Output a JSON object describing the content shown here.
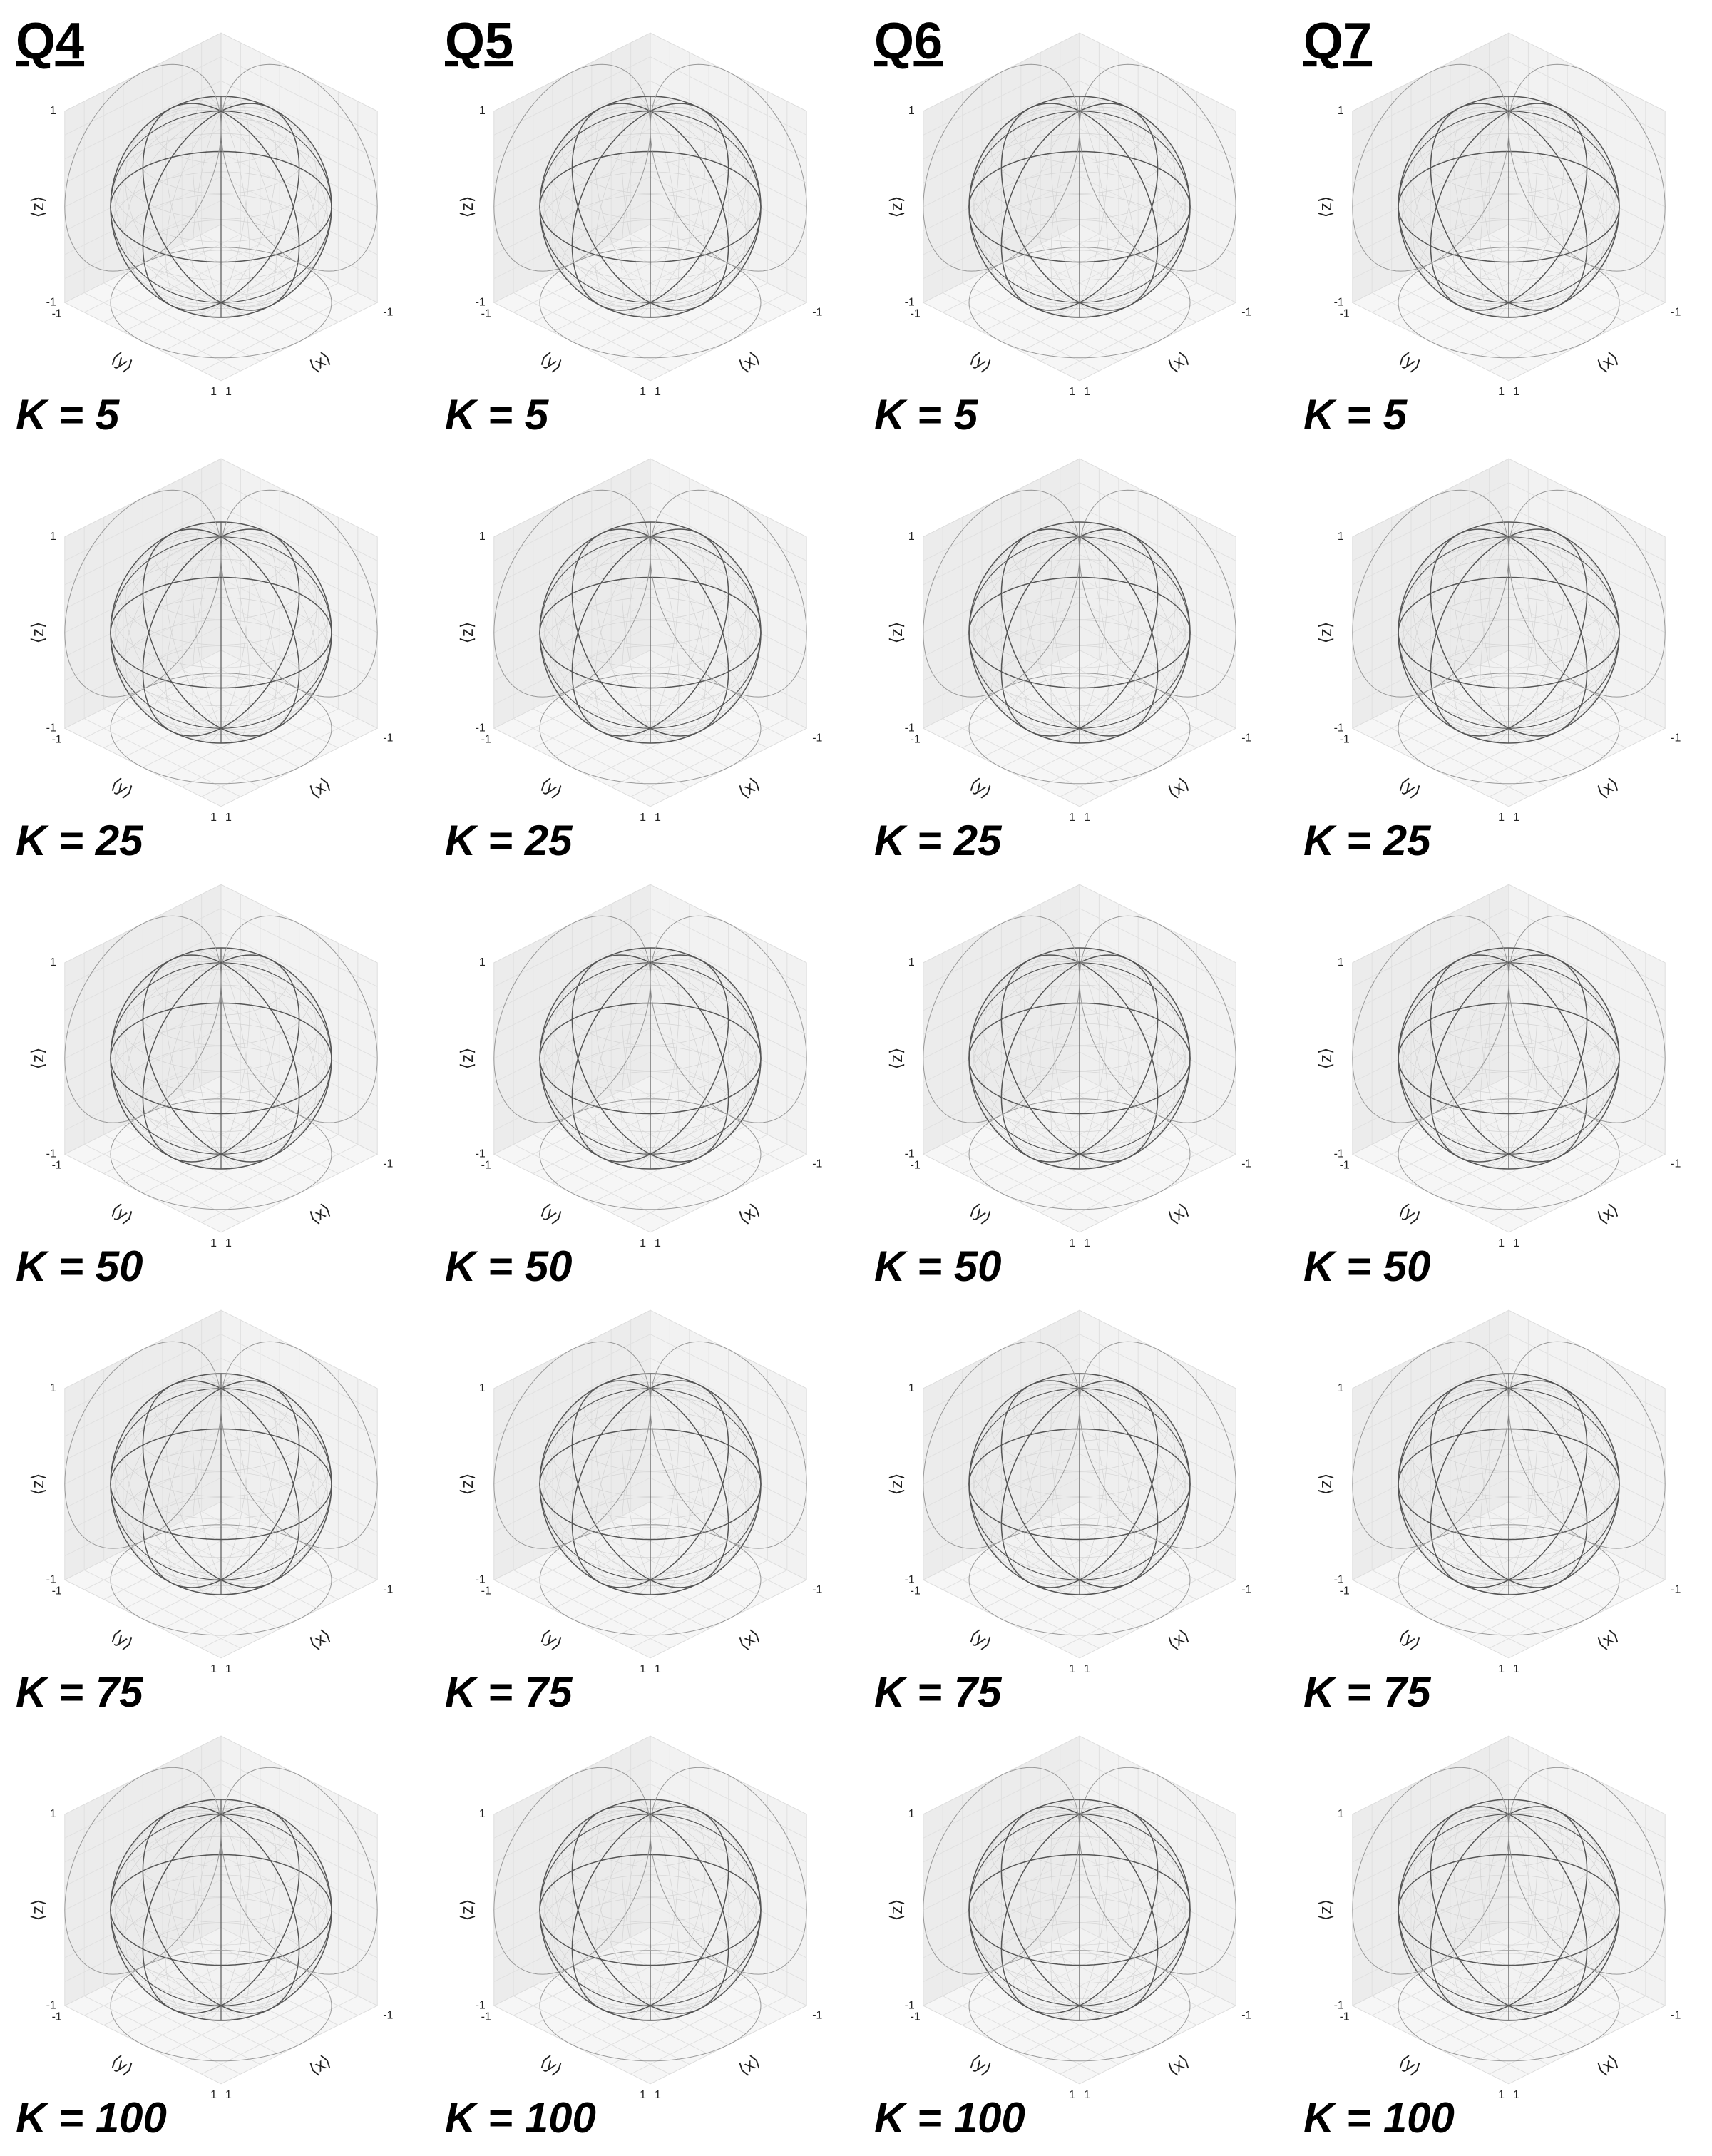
{
  "columns": [
    {
      "title": "Q4"
    },
    {
      "title": "Q5"
    },
    {
      "title": "Q6"
    },
    {
      "title": "Q7"
    }
  ],
  "rows": [
    {
      "label": "K = 5"
    },
    {
      "label": "K = 25"
    },
    {
      "label": "K = 50"
    },
    {
      "label": "K = 75"
    },
    {
      "label": "K = 100"
    }
  ],
  "axis_labels": {
    "x": "⟨x⟩",
    "y": "⟨y⟩",
    "z": "⟨z⟩"
  },
  "tick_labels": {
    "min": "-1",
    "max": "1"
  }
}
